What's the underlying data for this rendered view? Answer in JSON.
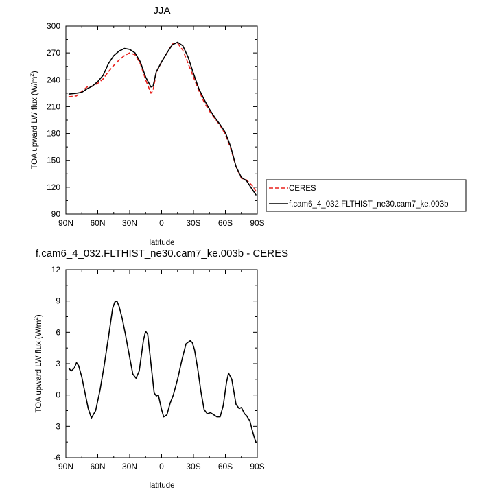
{
  "chart_data": [
    {
      "type": "line",
      "title": "JJA",
      "xlabel": "latitude",
      "ylabel": "TOA upward LW flux (W/m²)",
      "xlim": [
        90,
        -90
      ],
      "ylim": [
        90,
        300
      ],
      "xticks": [
        90,
        60,
        30,
        0,
        -30,
        -60,
        -90
      ],
      "xtick_labels": [
        "90N",
        "60N",
        "30N",
        "0",
        "30S",
        "60S",
        "90S"
      ],
      "yticks": [
        90,
        120,
        150,
        180,
        210,
        240,
        270,
        300
      ],
      "ytick_labels": [
        "90",
        "120",
        "150",
        "180",
        "210",
        "240",
        "270",
        "300"
      ],
      "legend_position": "right",
      "series": [
        {
          "name": "CERES",
          "color": "#e8201c",
          "dash": true,
          "x": [
            87.5,
            80,
            75,
            70,
            65,
            60,
            55,
            50,
            45,
            40,
            35,
            30,
            25,
            20,
            15,
            10,
            8,
            5,
            0,
            -5,
            -10,
            -15,
            -20,
            -25,
            -30,
            -35,
            -40,
            -45,
            -50,
            -55,
            -60,
            -65,
            -70,
            -75,
            -80,
            -85,
            -89
          ],
          "y": [
            221,
            222,
            227,
            232,
            233,
            236,
            241,
            249,
            256,
            262,
            267,
            270,
            268,
            258,
            240,
            225,
            228,
            248,
            260,
            270,
            280,
            281,
            273,
            258,
            243,
            228,
            215,
            205,
            197,
            189,
            179,
            163,
            143,
            130,
            128,
            122,
            115
          ]
        },
        {
          "name": "f.cam6_4_032.FLTHIST_ne30.cam7_ke.003b",
          "color": "#000000",
          "dash": false,
          "x": [
            87.5,
            80,
            75,
            70,
            65,
            60,
            55,
            50,
            45,
            40,
            35,
            30,
            25,
            20,
            15,
            10,
            8,
            5,
            0,
            -5,
            -10,
            -15,
            -20,
            -25,
            -30,
            -35,
            -40,
            -45,
            -50,
            -55,
            -60,
            -65,
            -70,
            -75,
            -80,
            -85,
            -89
          ],
          "y": [
            224,
            225,
            226,
            230,
            233,
            238,
            245,
            258,
            267,
            272,
            275,
            274,
            270,
            260,
            243,
            232,
            233,
            249,
            260,
            270,
            279,
            282,
            278,
            265,
            247,
            230,
            218,
            207,
            198,
            190,
            181,
            165,
            143,
            131,
            127,
            118,
            111
          ]
        }
      ]
    },
    {
      "type": "line",
      "title": "f.cam6_4_032.FLTHIST_ne30.cam7_ke.003b - CERES",
      "xlabel": "latitude",
      "ylabel": "TOA upward LW flux (W/m²)",
      "xlim": [
        90,
        -90
      ],
      "ylim": [
        -6,
        12
      ],
      "xticks": [
        90,
        60,
        30,
        0,
        -30,
        -60,
        -90
      ],
      "xtick_labels": [
        "90N",
        "60N",
        "30N",
        "0",
        "30S",
        "60S",
        "90S"
      ],
      "yticks": [
        -6,
        -3,
        0,
        3,
        6,
        9,
        12
      ],
      "ytick_labels": [
        "-6",
        "-3",
        "0",
        "3",
        "6",
        "9",
        "12"
      ],
      "series": [
        {
          "color": "#000000",
          "x": [
            87.5,
            85,
            82,
            80,
            78,
            75,
            72,
            69,
            66,
            62,
            58,
            54,
            50,
            46,
            44,
            42,
            40,
            37,
            34,
            30,
            27,
            24,
            21,
            17,
            15,
            13,
            10,
            7,
            5,
            3,
            0,
            -2,
            -5,
            -8,
            -11,
            -15,
            -19,
            -23,
            -27,
            -29,
            -31,
            -34,
            -37,
            -40,
            -43,
            -46,
            -49,
            -52,
            -55,
            -58,
            -61,
            -63,
            -66,
            -68,
            -70,
            -73,
            -75,
            -78,
            -80,
            -83,
            -85,
            -87,
            -89
          ],
          "y": [
            2.6,
            2.3,
            2.6,
            3.1,
            2.8,
            1.7,
            0.2,
            -1.3,
            -2.2,
            -1.5,
            0.4,
            2.8,
            5.5,
            8.3,
            8.9,
            9.0,
            8.5,
            7.3,
            5.8,
            3.6,
            2.0,
            1.6,
            2.3,
            5.3,
            6.1,
            5.8,
            3.0,
            0.2,
            -0.1,
            0.0,
            -1.4,
            -2.1,
            -1.9,
            -0.8,
            0.0,
            1.5,
            3.3,
            4.9,
            5.2,
            5.0,
            4.3,
            2.5,
            0.3,
            -1.4,
            -1.8,
            -1.7,
            -1.9,
            -2.1,
            -2.1,
            -1.0,
            1.2,
            2.1,
            1.5,
            0.3,
            -0.9,
            -1.3,
            -1.2,
            -1.8,
            -2.0,
            -2.5,
            -3.3,
            -4.0,
            -4.6
          ]
        }
      ]
    }
  ]
}
